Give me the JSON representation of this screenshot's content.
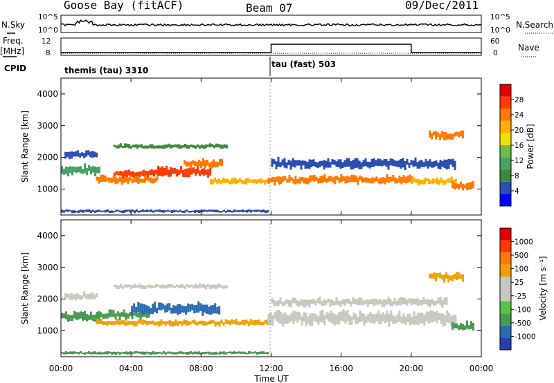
{
  "header": {
    "station": "Goose Bay (fitACF)",
    "beam": "Beam 07",
    "date": "09/Dec/2011"
  },
  "noise_panel": {
    "left_label": "N.Sky",
    "right_label": "N.Search",
    "left_ticks": [
      "10^5",
      "10^0"
    ],
    "right_ticks": [
      "10^5",
      "10^0"
    ]
  },
  "freq_panel": {
    "left_label_line1": "Freq.",
    "left_label_line2": "[MHz]",
    "left_ticks": [
      "12",
      "8"
    ],
    "right_label": "Nave",
    "right_ticks": [
      "60",
      "0"
    ]
  },
  "cpid": {
    "label": "CPID",
    "segments": [
      {
        "name": "themis (tau) 3310",
        "start_hour": 0
      },
      {
        "name": "tau (fast) 503",
        "start_hour": 12
      }
    ]
  },
  "power_panel": {
    "ylabel": "Slant Range [km]",
    "yticks": [
      "4000",
      "3000",
      "2000",
      "1000"
    ],
    "colorbar_label": "Power [dB]",
    "colorbar_ticks": [
      "28",
      "24",
      "20",
      "16",
      "12",
      "8",
      "4"
    ],
    "colorbar_colors": [
      "#0000ff",
      "#2b4fb0",
      "#3a8a3a",
      "#48a268",
      "#6cbf4b",
      "#f0e000",
      "#ffb000",
      "#ff7a00",
      "#ff3a00",
      "#e60000"
    ]
  },
  "velocity_panel": {
    "ylabel": "Slant Range [km]",
    "yticks": [
      "4000",
      "3000",
      "2000",
      "1000"
    ],
    "colorbar_label": "Velocity [m s⁻¹]",
    "colorbar_ticks": [
      "1000",
      "500",
      "100",
      "25",
      "-25",
      "-100",
      "-500",
      "-1000"
    ],
    "colorbar_colors": [
      "#2a3fb0",
      "#2a6bb0",
      "#4a9a52",
      "#58c24a",
      "#c8c8c0",
      "#c8c8c0",
      "#f0a000",
      "#ff7a00",
      "#ff3a00",
      "#e60000"
    ]
  },
  "x_axis": {
    "label": "Time UT",
    "ticks": [
      "00:00",
      "04:00",
      "08:00",
      "12:00",
      "16:00",
      "20:00",
      "00:00"
    ]
  },
  "chart_data": {
    "type": "heatmap",
    "x_range_hours": [
      0,
      24
    ],
    "y_range_km": [
      180,
      4500
    ],
    "power_bands": [
      {
        "t0": 0,
        "t1": 2.2,
        "r": 1600,
        "w": 260,
        "color": "#48a268"
      },
      {
        "t0": 0.2,
        "t1": 2.0,
        "r": 2100,
        "w": 200,
        "color": "#2b4fb0"
      },
      {
        "t0": 2.0,
        "t1": 5.5,
        "r": 1300,
        "w": 200,
        "color": "#ff7a00"
      },
      {
        "t0": 3.0,
        "t1": 6.0,
        "r": 1500,
        "w": 180,
        "color": "#ff3a00"
      },
      {
        "t0": 5.5,
        "t1": 8.5,
        "r": 1550,
        "w": 260,
        "color": "#ff3a00"
      },
      {
        "t0": 7.0,
        "t1": 9.2,
        "r": 1800,
        "w": 220,
        "color": "#ff7a00"
      },
      {
        "t0": 8.5,
        "t1": 11.8,
        "r": 1250,
        "w": 160,
        "color": "#ffb000"
      },
      {
        "t0": 3.0,
        "t1": 9.5,
        "r": 2350,
        "w": 120,
        "color": "#3a8a3a"
      },
      {
        "t0": 11.8,
        "t1": 20.0,
        "r": 1300,
        "w": 220,
        "color": "#ff7a00"
      },
      {
        "t0": 12.0,
        "t1": 22.5,
        "r": 1800,
        "w": 260,
        "color": "#2b4fb0"
      },
      {
        "t0": 20.0,
        "t1": 22.5,
        "r": 1250,
        "w": 180,
        "color": "#ffb000"
      },
      {
        "t0": 22.3,
        "t1": 23.6,
        "r": 1100,
        "w": 200,
        "color": "#ff7a00"
      },
      {
        "t0": 21.0,
        "t1": 23.0,
        "r": 2700,
        "w": 220,
        "color": "#ff7a00"
      },
      {
        "t0": 0,
        "t1": 11.8,
        "r": 300,
        "w": 80,
        "color": "#2b4fb0"
      }
    ],
    "velocity_bands": [
      {
        "t0": 0,
        "t1": 2.2,
        "r": 1450,
        "w": 240,
        "color": "#4a9a52"
      },
      {
        "t0": 0.2,
        "t1": 2.0,
        "r": 2100,
        "w": 200,
        "color": "#c8c8c0"
      },
      {
        "t0": 2.0,
        "t1": 5.0,
        "r": 1500,
        "w": 220,
        "color": "#4a9a52"
      },
      {
        "t0": 4.0,
        "t1": 9.0,
        "r": 1700,
        "w": 300,
        "color": "#2a6bb0"
      },
      {
        "t0": 2.0,
        "t1": 11.8,
        "r": 1250,
        "w": 160,
        "color": "#f0a000"
      },
      {
        "t0": 3.0,
        "t1": 9.5,
        "r": 2400,
        "w": 120,
        "color": "#c8c8c0"
      },
      {
        "t0": 11.8,
        "t1": 22.5,
        "r": 1400,
        "w": 360,
        "color": "#c8c8c0"
      },
      {
        "t0": 12.0,
        "t1": 22.0,
        "r": 1900,
        "w": 220,
        "color": "#c8c8c0"
      },
      {
        "t0": 22.3,
        "t1": 23.6,
        "r": 1150,
        "w": 220,
        "color": "#4a9a52"
      },
      {
        "t0": 21.0,
        "t1": 23.0,
        "r": 2700,
        "w": 220,
        "color": "#f0a000"
      },
      {
        "t0": 0,
        "t1": 11.8,
        "r": 300,
        "w": 80,
        "color": "#4a9a52"
      }
    ]
  }
}
